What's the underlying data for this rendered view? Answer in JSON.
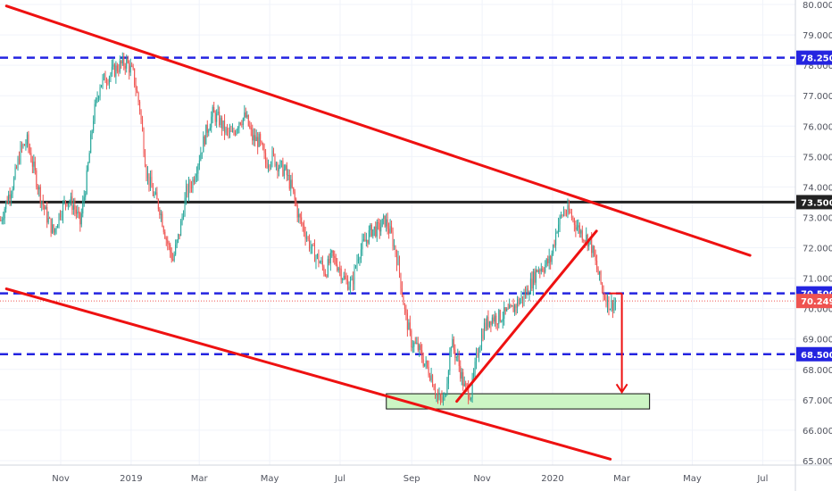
{
  "chart_data": {
    "type": "candlestick",
    "instrument_note": "",
    "y_axis": {
      "ticks": [
        "80.000",
        "79.000",
        "78.000",
        "77.000",
        "76.000",
        "75.000",
        "74.000",
        "73.000",
        "72.000",
        "71.000",
        "70.000",
        "69.000",
        "68.000",
        "67.000",
        "66.000",
        "65.000"
      ],
      "range": [
        64.9,
        80.2
      ]
    },
    "x_axis": {
      "ticks": [
        "Nov",
        "2019",
        "Mar",
        "May",
        "Jul",
        "Sep",
        "Nov",
        "2020",
        "Mar",
        "May",
        "Jul"
      ],
      "range": [
        "2018-09-15",
        "2020-08-15"
      ]
    },
    "price_labels": [
      {
        "text": "78.250",
        "value": 78.25,
        "color": "#2424e0"
      },
      {
        "text": "73.500",
        "value": 73.5,
        "color": "#222222"
      },
      {
        "text": "70.500",
        "value": 70.5,
        "color": "#2424e0"
      },
      {
        "text": "70.249",
        "value": 70.249,
        "color": "#ef5350"
      },
      {
        "text": "68.500",
        "value": 68.5,
        "color": "#2424e0"
      }
    ],
    "horizontal_levels": [
      {
        "value": 78.25,
        "style": "dashed",
        "color": "#2424e0"
      },
      {
        "value": 73.5,
        "style": "solid",
        "color": "#222222"
      },
      {
        "value": 70.5,
        "style": "dashed",
        "color": "#2424e0"
      },
      {
        "value": 68.5,
        "style": "dashed",
        "color": "#2424e0"
      },
      {
        "value": 70.249,
        "style": "dotted",
        "color": "#ef5350"
      }
    ],
    "trend_lines": [
      {
        "from": [
          "2018-09-15",
          79.95
        ],
        "to": [
          "2020-06-20",
          71.75
        ],
        "color": "#ee1111"
      },
      {
        "from": [
          "2018-09-15",
          70.65
        ],
        "to": [
          "2020-02-20",
          65.05
        ],
        "color": "#ee1111"
      },
      {
        "from": [
          "2019-10-10",
          66.95
        ],
        "to": [
          "2020-02-08",
          72.55
        ],
        "color": "#ee1111"
      }
    ],
    "target_zone": {
      "x_from": "2019-08-10",
      "x_to": "2020-03-25",
      "y_from": 66.7,
      "y_to": 67.2,
      "color": "#ccf5c4"
    },
    "arrow": {
      "x": "2020-03-01",
      "from": 70.5,
      "to": 67.25,
      "color": "#ee1111"
    },
    "last_price": 70.249,
    "closes": [
      72.9,
      73.6,
      74.2,
      75.2,
      75.5,
      74.6,
      73.7,
      73.0,
      72.5,
      73.2,
      73.6,
      73.4,
      72.8,
      74.3,
      76.3,
      77.4,
      77.6,
      77.8,
      78.0,
      78.1,
      77.7,
      76.6,
      74.5,
      73.8,
      73.3,
      72.3,
      71.6,
      72.5,
      73.8,
      74.2,
      75.0,
      75.8,
      76.4,
      76.2,
      75.8,
      75.7,
      76.2,
      76.3,
      75.6,
      75.5,
      74.8,
      75.0,
      74.7,
      74.5,
      73.9,
      73.0,
      72.5,
      71.9,
      71.6,
      71.2,
      71.7,
      71.4,
      70.9,
      70.8,
      71.8,
      72.2,
      72.6,
      72.6,
      72.9,
      72.4,
      71.5,
      69.9,
      68.9,
      68.7,
      68.2,
      67.8,
      67.0,
      67.0,
      68.9,
      68.3,
      67.4,
      67.2,
      68.6,
      69.4,
      69.7,
      69.7,
      69.8,
      69.9,
      70.2,
      70.4,
      70.8,
      71.3,
      71.4,
      71.6,
      72.7,
      73.2,
      73.1,
      72.7,
      72.4,
      72.2,
      71.3,
      70.5,
      70.1,
      70.249
    ]
  }
}
